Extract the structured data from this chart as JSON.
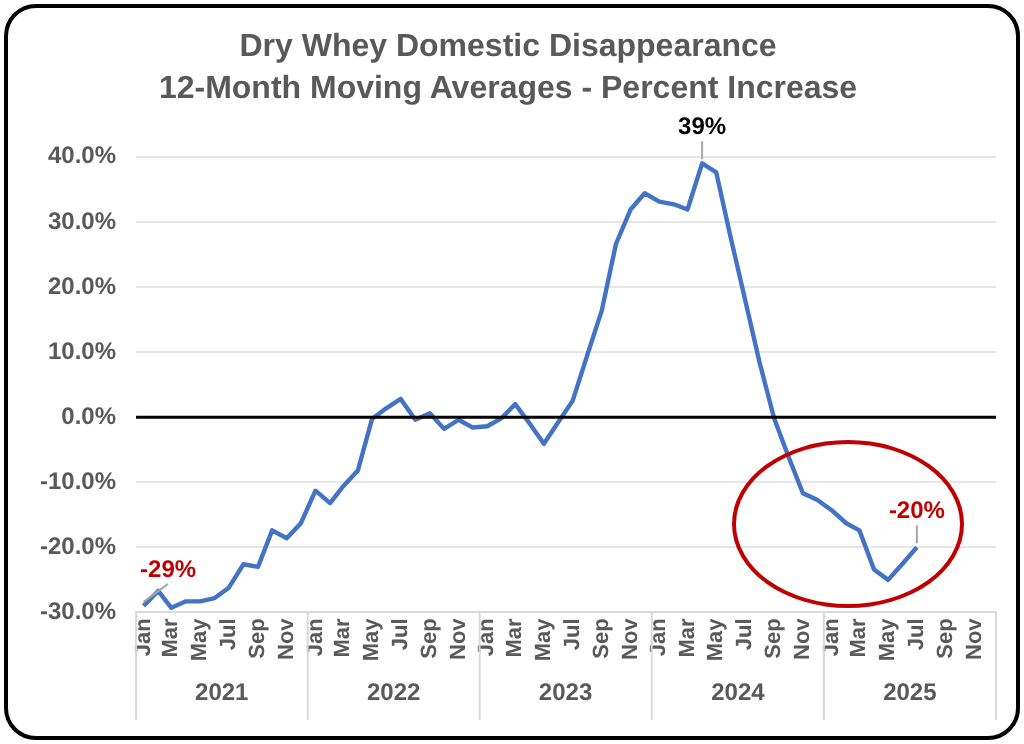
{
  "chart_data": {
    "type": "line",
    "title": "Dry Whey Domestic Disappearance",
    "subtitle": "12-Month Moving Averages - Percent Increase",
    "x": [
      "2021-01",
      "2021-02",
      "2021-03",
      "2021-04",
      "2021-05",
      "2021-06",
      "2021-07",
      "2021-08",
      "2021-09",
      "2021-10",
      "2021-11",
      "2021-12",
      "2022-01",
      "2022-02",
      "2022-03",
      "2022-04",
      "2022-05",
      "2022-06",
      "2022-07",
      "2022-08",
      "2022-09",
      "2022-10",
      "2022-11",
      "2022-12",
      "2023-01",
      "2023-02",
      "2023-03",
      "2023-04",
      "2023-05",
      "2023-06",
      "2023-07",
      "2023-08",
      "2023-09",
      "2023-10",
      "2023-11",
      "2023-12",
      "2024-01",
      "2024-02",
      "2024-03",
      "2024-04",
      "2024-05",
      "2024-06",
      "2024-07",
      "2024-08",
      "2024-09",
      "2024-10",
      "2024-11",
      "2024-12",
      "2025-01",
      "2025-02",
      "2025-03",
      "2025-04",
      "2025-05",
      "2025-06",
      "2025-07"
    ],
    "series": [
      {
        "color": "#4472c4",
        "values": [
          -29,
          -26.7,
          -29.3,
          -28.3,
          -28.3,
          -27.8,
          -26.2,
          -22.6,
          -23,
          -17.4,
          -18.6,
          -16.3,
          -11.3,
          -13.2,
          -10.6,
          -8.2,
          -0.3,
          1.4,
          2.8,
          -0.4,
          0.6,
          -1.8,
          -0.4,
          -1.6,
          -1.4,
          -0.1,
          2,
          -1,
          -4.1,
          -0.7,
          2.5,
          9.5,
          16.4,
          26.6,
          31.9,
          34.4,
          33.1,
          32.7,
          31.9,
          39,
          37.6,
          27.5,
          18.1,
          8.4,
          -0.2,
          -6,
          -11.7,
          -12.7,
          -14.3,
          -16.3,
          -17.4,
          -23.4,
          -25,
          -22.5,
          -20
        ]
      }
    ],
    "xlim": [
      "2020-12-16",
      "2025-12-16"
    ],
    "x2lim": [
      "2020-12-16",
      "2025-12-16"
    ],
    "x2ticks": [
      {
        "value": "2021-06-16",
        "label": "2021"
      },
      {
        "value": "2022-06-16",
        "label": "2022"
      },
      {
        "value": "2023-06-16",
        "label": "2023"
      },
      {
        "value": "2024-06-16",
        "label": "2024"
      },
      {
        "value": "2025-06-16",
        "label": "2025"
      }
    ],
    "xticks": [
      {
        "value": "2021-01",
        "label": "Jan"
      },
      {
        "value": "2021-03",
        "label": "Mar"
      },
      {
        "value": "2021-05",
        "label": "May"
      },
      {
        "value": "2021-07",
        "label": "Jul"
      },
      {
        "value": "2021-09",
        "label": "Sep"
      },
      {
        "value": "2021-11",
        "label": "Nov"
      },
      {
        "value": "2022-01",
        "label": "Jan"
      },
      {
        "value": "2022-03",
        "label": "Mar"
      },
      {
        "value": "2022-05",
        "label": "May"
      },
      {
        "value": "2022-07",
        "label": "Jul"
      },
      {
        "value": "2022-09",
        "label": "Sep"
      },
      {
        "value": "2022-11",
        "label": "Nov"
      },
      {
        "value": "2023-01",
        "label": "Jan"
      },
      {
        "value": "2023-03",
        "label": "Mar"
      },
      {
        "value": "2023-05",
        "label": "May"
      },
      {
        "value": "2023-07",
        "label": "Jul"
      },
      {
        "value": "2023-09",
        "label": "Sep"
      },
      {
        "value": "2023-11",
        "label": "Nov"
      },
      {
        "value": "2024-01",
        "label": "Jan"
      },
      {
        "value": "2024-03",
        "label": "Mar"
      },
      {
        "value": "2024-05",
        "label": "May"
      },
      {
        "value": "2024-07",
        "label": "Jul"
      },
      {
        "value": "2024-09",
        "label": "Sep"
      },
      {
        "value": "2024-11",
        "label": "Nov"
      },
      {
        "value": "2025-01",
        "label": "Jan"
      },
      {
        "value": "2025-03",
        "label": "Mar"
      },
      {
        "value": "2025-05",
        "label": "May"
      },
      {
        "value": "2025-07",
        "label": "Jul"
      },
      {
        "value": "2025-09",
        "label": "Sep"
      },
      {
        "value": "2025-11",
        "label": "Nov"
      }
    ],
    "ylim": [
      -30,
      40
    ],
    "yticks": [
      {
        "value": -30,
        "label": "-30.0%"
      },
      {
        "value": -20,
        "label": "-20.0%"
      },
      {
        "value": -10,
        "label": "-10.0%"
      },
      {
        "value": 0,
        "label": "0.0%"
      },
      {
        "value": 10,
        "label": "10.0%"
      },
      {
        "value": 20,
        "label": "20.0%"
      },
      {
        "value": 30,
        "label": "30.0%"
      },
      {
        "value": 40,
        "label": "40.0%"
      }
    ],
    "grid": "y",
    "legend": false,
    "marker": "none",
    "line_style": "solid",
    "ref_lines": [
      {
        "axis": "y",
        "value": 0,
        "color": "#000000"
      }
    ],
    "annotations": [
      {
        "text": "-29%",
        "x": "2021-01",
        "y": -29
      },
      {
        "text": "39%",
        "x": "2024-04",
        "y": 39
      },
      {
        "text": "-20%",
        "x": "2025-07",
        "y": -20
      }
    ]
  }
}
